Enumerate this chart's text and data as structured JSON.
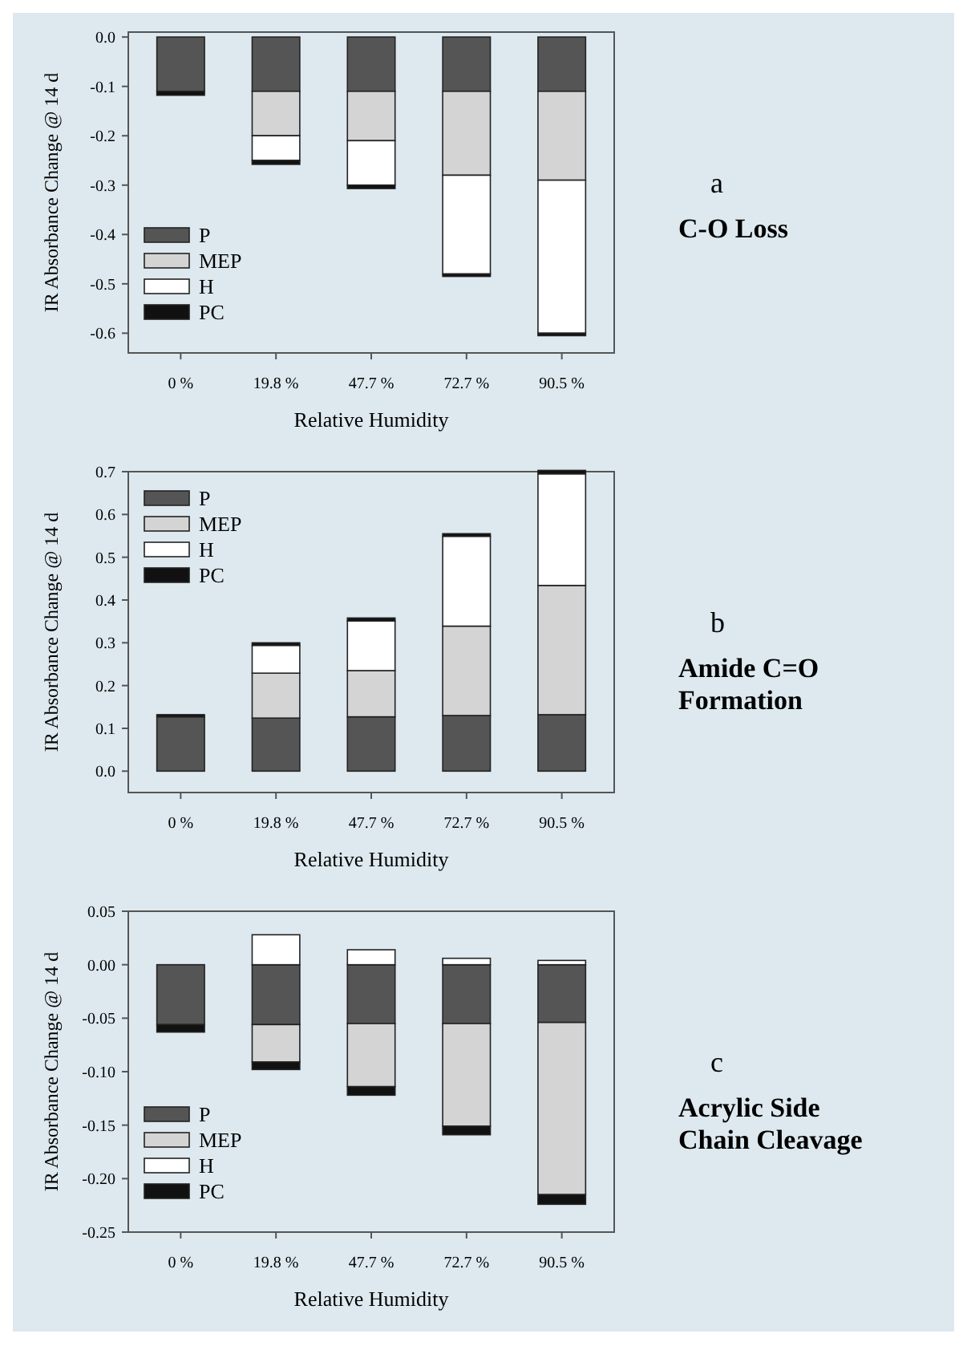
{
  "chart_data": [
    {
      "type": "bar",
      "stacked": true,
      "annotations": [
        "a",
        "C-O Loss"
      ],
      "xlabel": "Relative Humidity",
      "ylabel": "IR Absorbance Change @ 14 d",
      "categories": [
        "0 %",
        "19.8 %",
        "47.7 %",
        "72.7 %",
        "90.5 %"
      ],
      "ylim": [
        -0.64,
        0.01
      ],
      "yticks": [
        {
          "value": 0,
          "label": "0.0"
        },
        {
          "value": -0.1,
          "label": "-0.1"
        },
        {
          "value": -0.2,
          "label": "-0.2"
        },
        {
          "value": -0.3,
          "label": "-0.3"
        },
        {
          "value": -0.4,
          "label": "-0.4"
        },
        {
          "value": -0.5,
          "label": "-0.5"
        },
        {
          "value": -0.6,
          "label": "-0.6"
        }
      ],
      "legend": "bottom left",
      "series": [
        {
          "name": "P",
          "color": "#555555",
          "values": [
            -0.11,
            -0.11,
            -0.11,
            -0.11,
            -0.11
          ]
        },
        {
          "name": "MEP",
          "color": "#d4d4d4",
          "values": [
            0,
            -0.09,
            -0.1,
            -0.17,
            -0.18
          ]
        },
        {
          "name": "H",
          "color": "#ffffff",
          "values": [
            0,
            -0.05,
            -0.09,
            -0.2,
            -0.31
          ]
        },
        {
          "name": "PC",
          "color": "#111111",
          "values": [
            -0.008,
            -0.008,
            -0.007,
            -0.005,
            -0.005
          ]
        }
      ]
    },
    {
      "type": "bar",
      "stacked": true,
      "annotations": [
        "b",
        "Amide C=O Formation"
      ],
      "xlabel": "Relative Humidity",
      "ylabel": "IR Absorbance Change @ 14 d",
      "categories": [
        "0 %",
        "19.8 %",
        "47.7 %",
        "72.7 %",
        "90.5 %"
      ],
      "ylim": [
        -0.05,
        0.7
      ],
      "yticks": [
        {
          "value": 0,
          "label": "0.0"
        },
        0.1,
        0.2,
        0.3,
        0.4,
        0.5,
        0.6,
        0.7
      ],
      "legend": "top left",
      "series": [
        {
          "name": "P",
          "color": "#555555",
          "values": [
            0.127,
            0.124,
            0.127,
            0.13,
            0.132
          ]
        },
        {
          "name": "MEP",
          "color": "#d4d4d4",
          "values": [
            0,
            0.105,
            0.108,
            0.209,
            0.302
          ]
        },
        {
          "name": "H",
          "color": "#ffffff",
          "values": [
            0,
            0.065,
            0.116,
            0.21,
            0.261
          ]
        },
        {
          "name": "PC",
          "color": "#111111",
          "values": [
            0.005,
            0.006,
            0.007,
            0.006,
            0.008
          ]
        }
      ]
    },
    {
      "type": "bar",
      "stacked": true,
      "annotations": [
        "c",
        "Acrylic Side Chain Cleavage"
      ],
      "xlabel": "Relative Humidity",
      "ylabel": "IR Absorbance Change @ 14 d",
      "categories": [
        "0 %",
        "19.8 %",
        "47.7 %",
        "72.7 %",
        "90.5 %"
      ],
      "ylim": [
        -0.25,
        0.05
      ],
      "yticks": [
        {
          "value": 0.05,
          "label": "0.05"
        },
        {
          "value": 0,
          "label": "0.00"
        },
        {
          "value": -0.05,
          "label": "-0.05"
        },
        {
          "value": -0.1,
          "label": "-0.10"
        },
        {
          "value": -0.15,
          "label": "-0.15"
        },
        {
          "value": -0.2,
          "label": "-0.20"
        },
        {
          "value": -0.25,
          "label": "-0.25"
        }
      ],
      "legend": "bottom left",
      "series": [
        {
          "name": "P",
          "color": "#555555",
          "values": [
            -0.056,
            -0.056,
            -0.055,
            -0.055,
            -0.054
          ]
        },
        {
          "name": "MEP",
          "color": "#d4d4d4",
          "values": [
            0,
            -0.035,
            -0.059,
            -0.096,
            -0.161
          ]
        },
        {
          "name": "H",
          "color": "#ffffff",
          "values": [
            0,
            0.028,
            0.014,
            0.006,
            0.004
          ]
        },
        {
          "name": "PC",
          "color": "#111111",
          "values": [
            -0.007,
            -0.007,
            -0.008,
            -0.008,
            -0.009
          ]
        }
      ]
    }
  ]
}
